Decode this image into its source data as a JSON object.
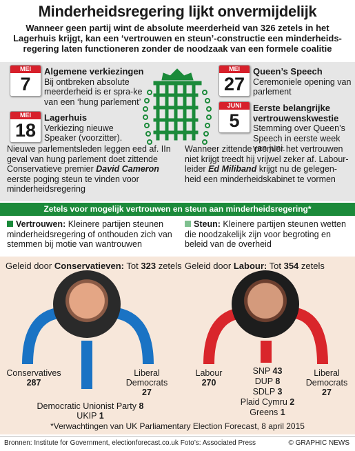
{
  "header": {
    "title": "Minderheidsregering lijkt onvermijdelijk",
    "subtitle": "Wanneer geen partij wint de absolute meerderheid van 326 zetels in het Lagerhuis krijgt, kan een ‘vertrouwen en steun’-constructie een minderheids-regering laten functioneren zonder de noodzaak van een formele coalitie"
  },
  "events": [
    {
      "month": "MEI",
      "day": "7",
      "title": "Algemene verkiezingen",
      "text": "Bij ontbreken absolute meerderheid is er spra-ke van een ‘hung parlement’"
    },
    {
      "month": "MEI",
      "day": "18",
      "title": "Lagerhuis",
      "text": "Verkiezing nieuwe Speaker (voorzitter)."
    },
    {
      "month": "MEI",
      "day": "27",
      "title": "Queen’s Speech",
      "text": "Ceremoniele opening van parlement"
    },
    {
      "month": "JUNI",
      "day": "5",
      "title": "Eerste belangrijke vertrouwenskwestie",
      "text": "Stemming over Queen’s Speech in eerste week van juni."
    }
  ],
  "paragraphs": {
    "left_pre": "Nieuwe parlementsleden leggen eed af. IIn geval van hung parlement doet zittende Conservatieve premier",
    "left_name": "David Cameron",
    "left_post": "eerste poging steun te vinden voor minderheidsregering",
    "right_pre": "Wanneer zittende premier het vertrouwen niet krijgt treedt hij vrijwel zeker af. Labour-leider",
    "right_name": "Ed Miliband",
    "right_post": "krijgt nu de gelegen-heid een minderheidskabinet te vormen"
  },
  "support_bar": "Zetels voor mogelijk vertrouwen en steun aan minderheidsregering*",
  "definitions": {
    "confidence_title": "Vertrouwen:",
    "confidence_text": "Kleinere partijen steunen minderheidsregering of onthouden zich van stemmen bij motie van wantrouwen",
    "supply_title": "Steun:",
    "supply_text": "Kleinere partijen steunen wetten die noodzakelijk zijn voor begroting en beleid van de overheid"
  },
  "blocs": {
    "conservative": {
      "lead_pre": "Geleid door",
      "lead_party": "Conservatieven:",
      "lead_mid": "Tot",
      "total": "323",
      "lead_post": "zetels"
    },
    "labour": {
      "lead_pre": "Geleid door",
      "lead_party": "Labour:",
      "lead_mid": "Tot",
      "total": "354",
      "lead_post": "zetels"
    }
  },
  "parties": {
    "conservatives": {
      "name": "Conservatives",
      "seats": "287"
    },
    "libdem_left": {
      "name": "Liberal Democrats",
      "seats": "27"
    },
    "dup_left": {
      "name": "Democratic Unionist Party",
      "seats": "8"
    },
    "ukip": {
      "name": "UKIP",
      "seats": "1"
    },
    "labour": {
      "name": "Labour",
      "seats": "270"
    },
    "snp": {
      "name": "SNP",
      "seats": "43"
    },
    "dup_right": {
      "name": "DUP",
      "seats": "8"
    },
    "sdlp": {
      "name": "SDLP",
      "seats": "3"
    },
    "plaid": {
      "name": "Plaid Cymru",
      "seats": "2"
    },
    "greens": {
      "name": "Greens",
      "seats": "1"
    },
    "libdem_right": {
      "name": "Liberal Democrats",
      "seats": "27"
    }
  },
  "colors": {
    "conservative": "#1a73c4",
    "labour": "#d9262b",
    "green": "#1b8a3a",
    "calendar_red": "#d7202b",
    "portcullis": "#1b8a3a"
  },
  "note": "*Verwachtingen van UK Parliamentary Election Forecast, 8 april 2015",
  "footer": {
    "sources": "Bronnen: Institute for Government, electionforecast.co.uk Foto’s: Associated Press",
    "copyright": "© GRAPHIC NEWS"
  }
}
